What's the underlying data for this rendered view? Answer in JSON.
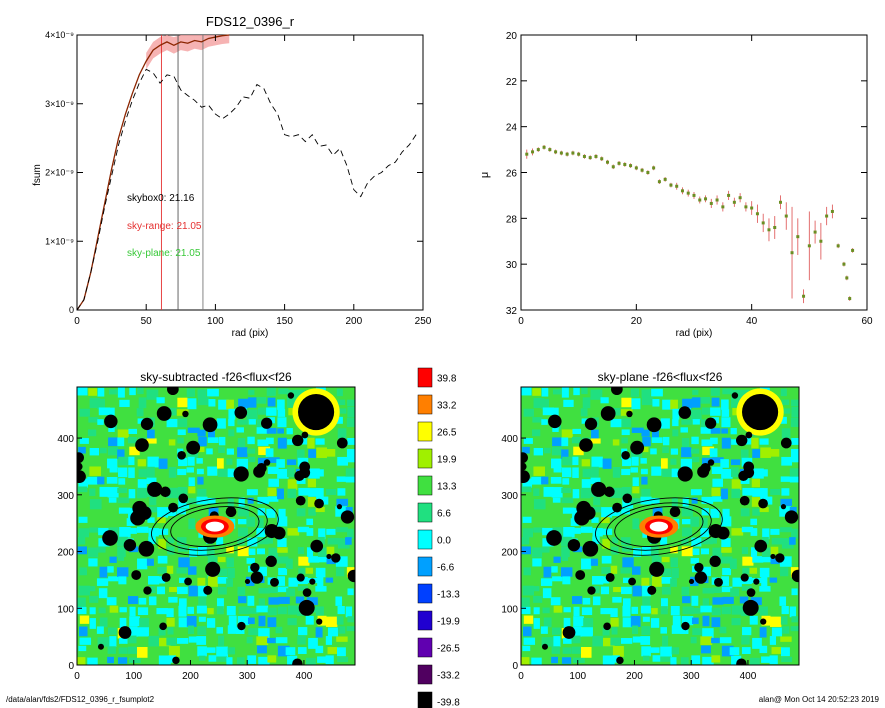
{
  "footer": {
    "path": "/data/alan/fds2/FDS12_0396_r_fsumplot2",
    "user_time": "alan@  Mon Oct 14 20:52:23 2019"
  },
  "chart_data": [
    {
      "type": "line",
      "title": "FDS12_0396_r",
      "xlabel": "rad (pix)",
      "ylabel": "fsum",
      "xlim": [
        0,
        250
      ],
      "ylim": [
        0,
        4e-09
      ],
      "xticks": [
        "0",
        "50",
        "100",
        "150",
        "200",
        "250"
      ],
      "yticks": [
        {
          "value": 0,
          "label": "0"
        },
        {
          "value": 1e-09,
          "label": "1×10⁻⁹"
        },
        {
          "value": 2e-09,
          "label": "2×10⁻⁹"
        },
        {
          "value": 3e-09,
          "label": "3×10⁻⁹"
        },
        {
          "value": 4e-09,
          "label": "4×10⁻⁹"
        }
      ],
      "series": [
        {
          "style": "solid",
          "color": "#8b2500",
          "x": [
            0,
            5,
            10,
            15,
            20,
            25,
            30,
            35,
            40,
            45,
            50,
            55,
            60,
            65,
            70,
            75,
            80,
            85,
            90,
            95,
            100,
            105,
            110
          ],
          "y": [
            0,
            1.5e-10,
            5.5e-10,
            1.05e-09,
            1.55e-09,
            2.05e-09,
            2.5e-09,
            2.85e-09,
            3.15e-09,
            3.42e-09,
            3.62e-09,
            3.78e-09,
            3.85e-09,
            3.9e-09,
            3.85e-09,
            3.9e-09,
            3.88e-09,
            3.92e-09,
            3.9e-09,
            3.95e-09,
            3.97e-09,
            3.99e-09,
            4e-09
          ]
        },
        {
          "style": "dashed",
          "color": "#000000",
          "x": [
            0,
            5,
            10,
            15,
            20,
            25,
            30,
            35,
            40,
            45,
            50,
            55,
            60,
            65,
            70,
            75,
            80,
            85,
            90,
            95,
            100,
            105,
            110,
            115,
            120,
            125,
            130,
            135,
            140,
            145,
            150,
            155,
            160,
            165,
            170,
            175,
            180,
            185,
            190,
            195,
            200,
            205,
            210,
            215,
            220,
            225,
            230,
            235,
            240,
            245
          ],
          "y": [
            0,
            1.5e-10,
            5.5e-10,
            1e-09,
            1.5e-09,
            1.95e-09,
            2.4e-09,
            2.75e-09,
            3.05e-09,
            3.3e-09,
            3.5e-09,
            3.45e-09,
            3.3e-09,
            3.42e-09,
            3.4e-09,
            3.2e-09,
            3.12e-09,
            3.05e-09,
            2.95e-09,
            2.98e-09,
            2.85e-09,
            2.78e-09,
            2.85e-09,
            2.95e-09,
            3.1e-09,
            3.08e-09,
            3.28e-09,
            3.22e-09,
            3e-09,
            2.85e-09,
            2.55e-09,
            2.52e-09,
            2.55e-09,
            2.45e-09,
            2.55e-09,
            2.38e-09,
            2.4e-09,
            2.25e-09,
            2.35e-09,
            2.1e-09,
            1.75e-09,
            1.65e-09,
            1.85e-09,
            1.95e-09,
            2e-09,
            2.1e-09,
            2.15e-09,
            2.3e-09,
            2.4e-09,
            2.55e-09
          ]
        }
      ],
      "error_band": {
        "color": "#f4a0a0",
        "x_from": 50,
        "x_to": 110,
        "halfwidth": 1.2e-10
      },
      "vlines": [
        {
          "x": 61,
          "color": "#e53030"
        },
        {
          "x": 73,
          "color": "#555555"
        },
        {
          "x": 91,
          "color": "#777777"
        }
      ],
      "annotations": [
        {
          "text": "skybox0: 21.16",
          "color": "#000000"
        },
        {
          "text": "sky-range: 21.05",
          "color": "#e53030"
        },
        {
          "text": "sky-plane: 21.05",
          "color": "#38c838"
        }
      ]
    },
    {
      "type": "scatter",
      "title": "",
      "xlabel": "rad (pix)",
      "ylabel": "μ",
      "xlim": [
        0,
        60
      ],
      "ylim": [
        32,
        20
      ],
      "xticks": [
        "0",
        "20",
        "40",
        "60"
      ],
      "yticks": [
        "20",
        "22",
        "24",
        "26",
        "28",
        "30",
        "32"
      ],
      "points": [
        {
          "x": 1,
          "y": 25.2,
          "e": 0.2
        },
        {
          "x": 2,
          "y": 25.1,
          "e": 0.15
        },
        {
          "x": 3,
          "y": 25.0,
          "e": 0.1
        },
        {
          "x": 4,
          "y": 24.9,
          "e": 0.1
        },
        {
          "x": 5,
          "y": 25.0,
          "e": 0.1
        },
        {
          "x": 6,
          "y": 25.1,
          "e": 0.1
        },
        {
          "x": 7,
          "y": 25.15,
          "e": 0.1
        },
        {
          "x": 8,
          "y": 25.2,
          "e": 0.1
        },
        {
          "x": 9,
          "y": 25.15,
          "e": 0.1
        },
        {
          "x": 10,
          "y": 25.2,
          "e": 0.1
        },
        {
          "x": 11,
          "y": 25.3,
          "e": 0.1
        },
        {
          "x": 12,
          "y": 25.35,
          "e": 0.1
        },
        {
          "x": 13,
          "y": 25.3,
          "e": 0.1
        },
        {
          "x": 14,
          "y": 25.4,
          "e": 0.1
        },
        {
          "x": 15,
          "y": 25.55,
          "e": 0.1
        },
        {
          "x": 16,
          "y": 25.75,
          "e": 0.1
        },
        {
          "x": 17,
          "y": 25.6,
          "e": 0.1
        },
        {
          "x": 18,
          "y": 25.65,
          "e": 0.1
        },
        {
          "x": 19,
          "y": 25.7,
          "e": 0.1
        },
        {
          "x": 20,
          "y": 25.8,
          "e": 0.1
        },
        {
          "x": 21,
          "y": 25.9,
          "e": 0.1
        },
        {
          "x": 22,
          "y": 26.0,
          "e": 0.1
        },
        {
          "x": 23,
          "y": 25.8,
          "e": 0.1
        },
        {
          "x": 24,
          "y": 26.4,
          "e": 0.1
        },
        {
          "x": 25,
          "y": 26.3,
          "e": 0.1
        },
        {
          "x": 26,
          "y": 26.55,
          "e": 0.1
        },
        {
          "x": 27,
          "y": 26.6,
          "e": 0.15
        },
        {
          "x": 28,
          "y": 26.8,
          "e": 0.15
        },
        {
          "x": 29,
          "y": 26.9,
          "e": 0.15
        },
        {
          "x": 30,
          "y": 27.0,
          "e": 0.15
        },
        {
          "x": 31,
          "y": 27.2,
          "e": 0.15
        },
        {
          "x": 32,
          "y": 27.15,
          "e": 0.15
        },
        {
          "x": 33,
          "y": 27.35,
          "e": 0.2
        },
        {
          "x": 34,
          "y": 27.2,
          "e": 0.2
        },
        {
          "x": 35,
          "y": 27.5,
          "e": 0.2
        },
        {
          "x": 36,
          "y": 27.0,
          "e": 0.2
        },
        {
          "x": 37,
          "y": 27.3,
          "e": 0.2
        },
        {
          "x": 38,
          "y": 27.1,
          "e": 0.2
        },
        {
          "x": 39,
          "y": 27.5,
          "e": 0.2
        },
        {
          "x": 40,
          "y": 27.55,
          "e": 0.3
        },
        {
          "x": 41,
          "y": 27.8,
          "e": 0.4
        },
        {
          "x": 42,
          "y": 28.2,
          "e": 0.4
        },
        {
          "x": 43,
          "y": 28.5,
          "e": 0.5
        },
        {
          "x": 44,
          "y": 28.4,
          "e": 0.5
        },
        {
          "x": 45,
          "y": 27.3,
          "e": 0.3
        },
        {
          "x": 46,
          "y": 27.9,
          "e": 0.6
        },
        {
          "x": 47,
          "y": 29.5,
          "e": 2.0
        },
        {
          "x": 48,
          "y": 28.8,
          "e": 0.8
        },
        {
          "x": 49,
          "y": 31.4,
          "e": 0.3
        },
        {
          "x": 50,
          "y": 29.2,
          "e": 1.5
        },
        {
          "x": 51,
          "y": 28.6,
          "e": 0.5
        },
        {
          "x": 52,
          "y": 29.0,
          "e": 0.8
        },
        {
          "x": 53,
          "y": 27.9,
          "e": 0.4
        },
        {
          "x": 54,
          "y": 27.7,
          "e": 0.3
        },
        {
          "x": 55,
          "y": 29.2,
          "e": 0.1
        },
        {
          "x": 56,
          "y": 30.0,
          "e": 0.1
        },
        {
          "x": 56.5,
          "y": 30.6,
          "e": 0.1
        },
        {
          "x": 57,
          "y": 31.5,
          "e": 0.1
        },
        {
          "x": 57.5,
          "y": 29.4,
          "e": 0.1
        }
      ]
    },
    {
      "type": "heatmap",
      "title": "sky-subtracted -f26<flux<f26",
      "xlim": [
        0,
        490
      ],
      "ylim": [
        0,
        490
      ],
      "xticks": [
        "0",
        "100",
        "200",
        "300",
        "400"
      ],
      "yticks": [
        "0",
        "100",
        "200",
        "300",
        "400"
      ]
    },
    {
      "type": "heatmap",
      "title": "sky-plane -f26<flux<f26",
      "xlim": [
        0,
        490
      ],
      "ylim": [
        0,
        490
      ],
      "xticks": [
        "0",
        "100",
        "200",
        "300",
        "400"
      ],
      "yticks": [
        "0",
        "100",
        "200",
        "300",
        "400"
      ]
    }
  ],
  "colorbar": {
    "labels": [
      "39.8",
      "33.2",
      "26.5",
      "19.9",
      "13.3",
      "6.6",
      "0.0",
      "-6.6",
      "-13.3",
      "-19.9",
      "-26.5",
      "-33.2",
      "-39.8"
    ],
    "colors": [
      "#ff0000",
      "#ff7f00",
      "#ffff00",
      "#a0f000",
      "#40e040",
      "#20e080",
      "#00ffff",
      "#00a0ff",
      "#0040ff",
      "#2000d0",
      "#6000b0",
      "#500060",
      "#000000"
    ]
  }
}
